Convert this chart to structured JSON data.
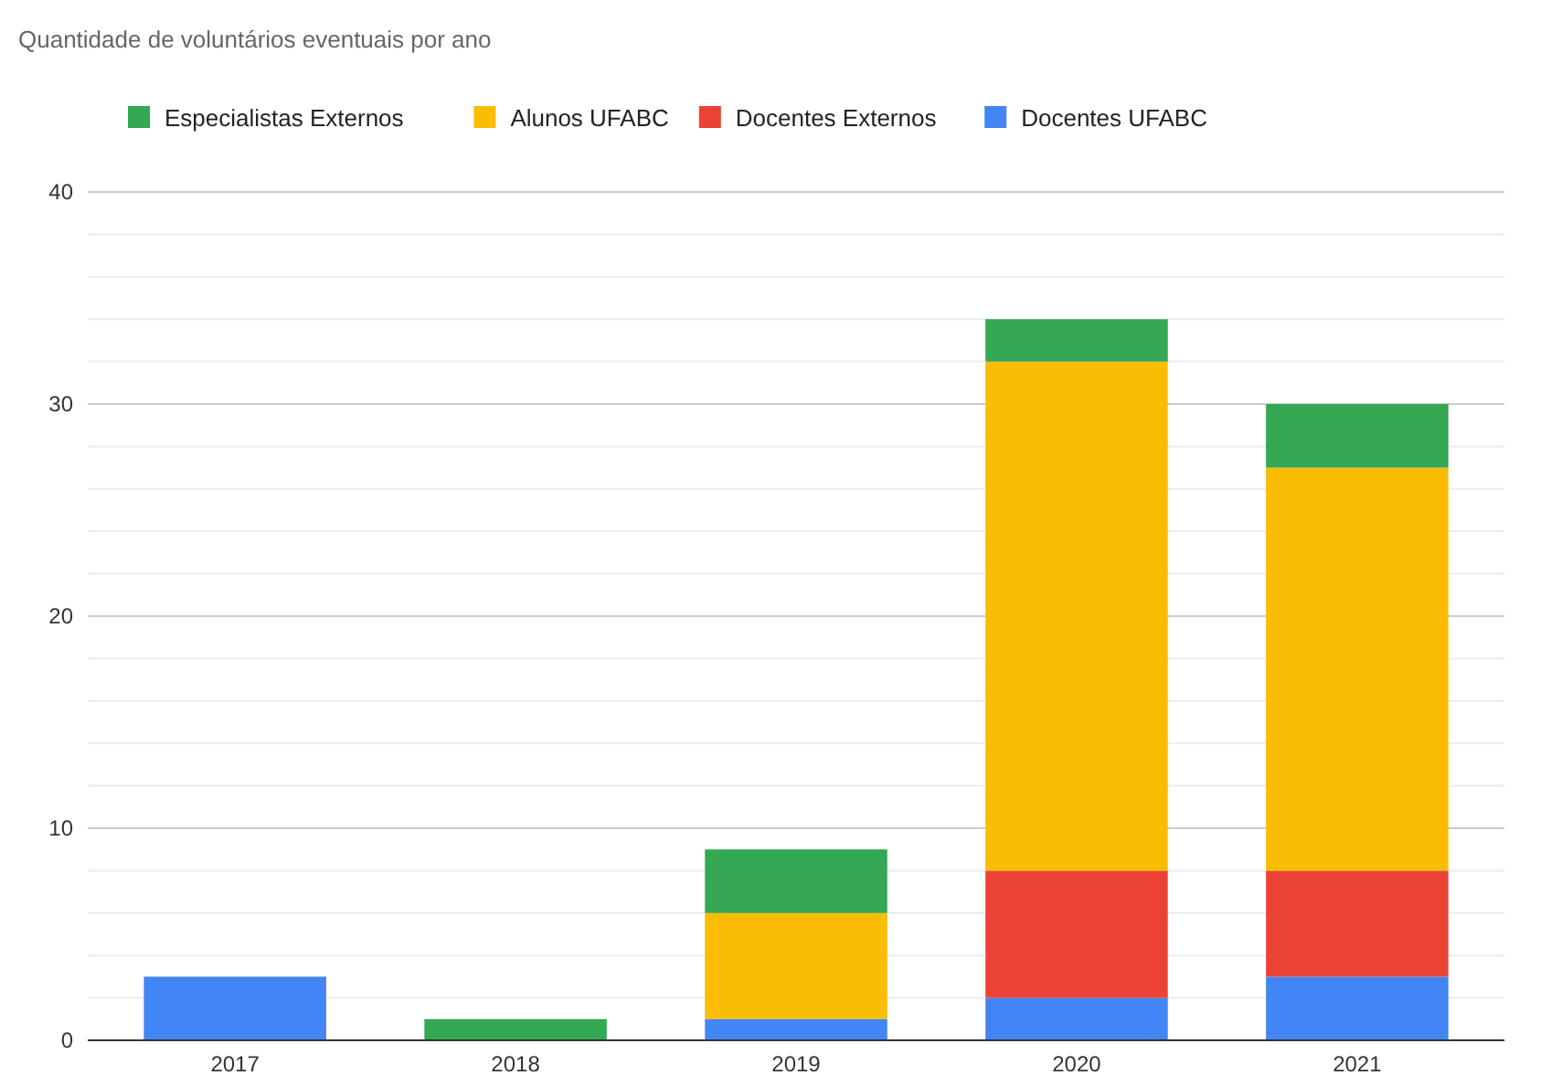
{
  "chart_data": {
    "type": "bar",
    "title": "Quantidade de voluntários eventuais por ano",
    "categories": [
      "2017",
      "2018",
      "2019",
      "2020",
      "2021"
    ],
    "series": [
      {
        "name": "Docentes UFABC",
        "color": "#4285f4",
        "values": [
          3,
          0,
          1,
          2,
          3
        ]
      },
      {
        "name": "Docentes Externos",
        "color": "#ea4335",
        "values": [
          0,
          0,
          0,
          6,
          5
        ]
      },
      {
        "name": "Alunos UFABC",
        "color": "#fbbc04",
        "values": [
          0,
          0,
          5,
          24,
          19
        ]
      },
      {
        "name": "Especialistas Externos",
        "color": "#34a853",
        "values": [
          0,
          1,
          3,
          2,
          3
        ]
      }
    ],
    "stacked": true,
    "ylim": [
      0,
      40
    ],
    "yticks": [
      0,
      {
        "value": 2,
        "label": null
      },
      {
        "value": 4,
        "label": null
      },
      {
        "value": 6,
        "label": null
      },
      {
        "value": 8,
        "label": null
      },
      10,
      {
        "value": 12,
        "label": null
      },
      {
        "value": 14,
        "label": null
      },
      {
        "value": 16,
        "label": null
      },
      {
        "value": 18,
        "label": null
      },
      20,
      {
        "value": 22,
        "label": null
      },
      {
        "value": 24,
        "label": null
      },
      {
        "value": 26,
        "label": null
      },
      {
        "value": 28,
        "label": null
      },
      30,
      {
        "value": 32,
        "label": null
      },
      {
        "value": 34,
        "label": null
      },
      {
        "value": 36,
        "label": null
      },
      {
        "value": 38,
        "label": null
      },
      40
    ],
    "grid": true,
    "legend": "top"
  }
}
